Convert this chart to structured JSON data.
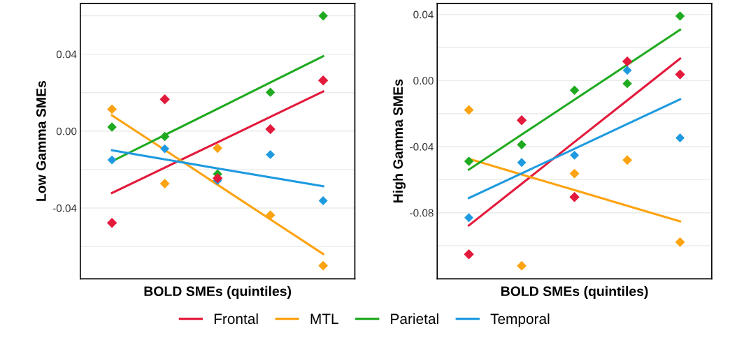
{
  "chart_data": [
    {
      "type": "scatter",
      "xlabel": "BOLD SMEs (quintiles)",
      "ylabel": "Low Gamma SMEs",
      "categories": [
        null,
        null,
        null,
        null,
        null
      ],
      "ylim": [
        -0.0768,
        0.0664
      ],
      "yticks": [
        {
          "value": -0.06,
          "label": null
        },
        -0.04,
        {
          "value": -0.02,
          "label": null
        },
        {
          "value": 0,
          "label": "0.00"
        },
        {
          "value": 0.02,
          "label": null
        },
        0.04,
        {
          "value": 0.06,
          "label": null
        }
      ],
      "grid": "y",
      "legend": "bottom",
      "series": [
        {
          "name": "Frontal",
          "color": "#e31a3c",
          "marker": "diamond",
          "values": [
            -0.0477,
            0.0165,
            -0.0245,
            0.001,
            0.0263
          ]
        },
        {
          "name": "MTL",
          "color": "#fca311",
          "marker": "diamond",
          "values": [
            0.0114,
            -0.0273,
            -0.0089,
            -0.0437,
            -0.07
          ]
        },
        {
          "name": "Parietal",
          "color": "#1faa1f",
          "marker": "diamond",
          "values": [
            0.0021,
            -0.0028,
            -0.0223,
            0.0202,
            0.0599
          ]
        },
        {
          "name": "Temporal",
          "color": "#1e9ae0",
          "marker": "diamond",
          "values": [
            -0.015,
            -0.0092,
            -0.0257,
            -0.0122,
            -0.0362
          ]
        },
        {
          "type": "line",
          "color": "#e31a3c",
          "values": [
            -0.0322,
            -0.019,
            -0.0058,
            0.0074,
            0.0206
          ]
        },
        {
          "type": "line",
          "color": "#fca311",
          "values": [
            0.0082,
            -0.0098,
            -0.0279,
            -0.0459,
            -0.0639
          ]
        },
        {
          "type": "line",
          "color": "#1faa1f",
          "values": [
            -0.0157,
            -0.002,
            0.0116,
            0.0253,
            0.0389
          ]
        },
        {
          "type": "line",
          "color": "#1e9ae0",
          "values": [
            -0.01,
            -0.0147,
            -0.0194,
            -0.024,
            -0.0287
          ]
        }
      ]
    },
    {
      "type": "scatter",
      "xlabel": "BOLD SMEs (quintiles)",
      "ylabel": "High Gamma SMEs",
      "categories": [
        null,
        null,
        null,
        null,
        null
      ],
      "ylim": [
        -0.12,
        0.0467
      ],
      "yticks": [
        {
          "value": -0.1,
          "label": null
        },
        -0.08,
        {
          "value": -0.06,
          "label": null
        },
        -0.04,
        {
          "value": -0.02,
          "label": null
        },
        {
          "value": 0,
          "label": "0.00"
        },
        {
          "value": 0.02,
          "label": null
        },
        0.04
      ],
      "grid": "y",
      "legend": "bottom",
      "series": [
        {
          "name": "Frontal",
          "color": "#e31a3c",
          "marker": "diamond",
          "values": [
            -0.1052,
            -0.024,
            -0.0705,
            0.0116,
            0.0037
          ]
        },
        {
          "name": "MTL",
          "color": "#fca311",
          "marker": "diamond",
          "values": [
            -0.0178,
            -0.1121,
            -0.0563,
            -0.0481,
            -0.0978
          ]
        },
        {
          "name": "Parietal",
          "color": "#1faa1f",
          "marker": "diamond",
          "values": [
            -0.0489,
            -0.0388,
            -0.0059,
            -0.0018,
            0.039
          ]
        },
        {
          "name": "Temporal",
          "color": "#1e9ae0",
          "marker": "diamond",
          "values": [
            -0.083,
            -0.0496,
            -0.0452,
            0.0062,
            -0.0347
          ]
        },
        {
          "type": "line",
          "color": "#e31a3c",
          "values": [
            -0.0877,
            -0.0625,
            -0.0372,
            -0.012,
            0.0133
          ]
        },
        {
          "type": "line",
          "color": "#fca311",
          "values": [
            -0.0474,
            -0.0569,
            -0.0663,
            -0.0758,
            -0.0852
          ]
        },
        {
          "type": "line",
          "color": "#1faa1f",
          "values": [
            -0.0539,
            -0.0327,
            -0.0116,
            0.0096,
            0.0308
          ]
        },
        {
          "type": "line",
          "color": "#1e9ae0",
          "values": [
            -0.0711,
            -0.0562,
            -0.0413,
            -0.0263,
            -0.0114
          ]
        }
      ]
    }
  ]
}
